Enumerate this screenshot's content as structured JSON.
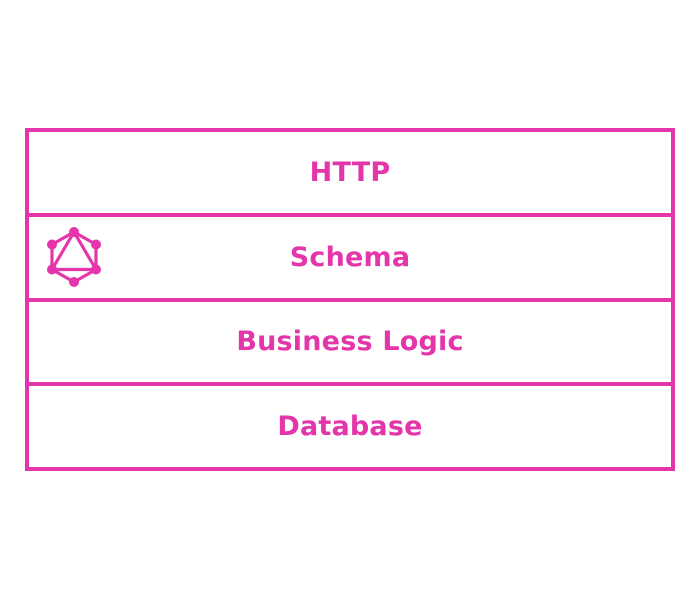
{
  "colors": {
    "accent": "#e535ab",
    "background": "#ffffff"
  },
  "layers": [
    {
      "label": "HTTP"
    },
    {
      "label": "Schema",
      "icon": "graphql-logo-icon"
    },
    {
      "label": "Business Logic"
    },
    {
      "label": "Database"
    }
  ]
}
